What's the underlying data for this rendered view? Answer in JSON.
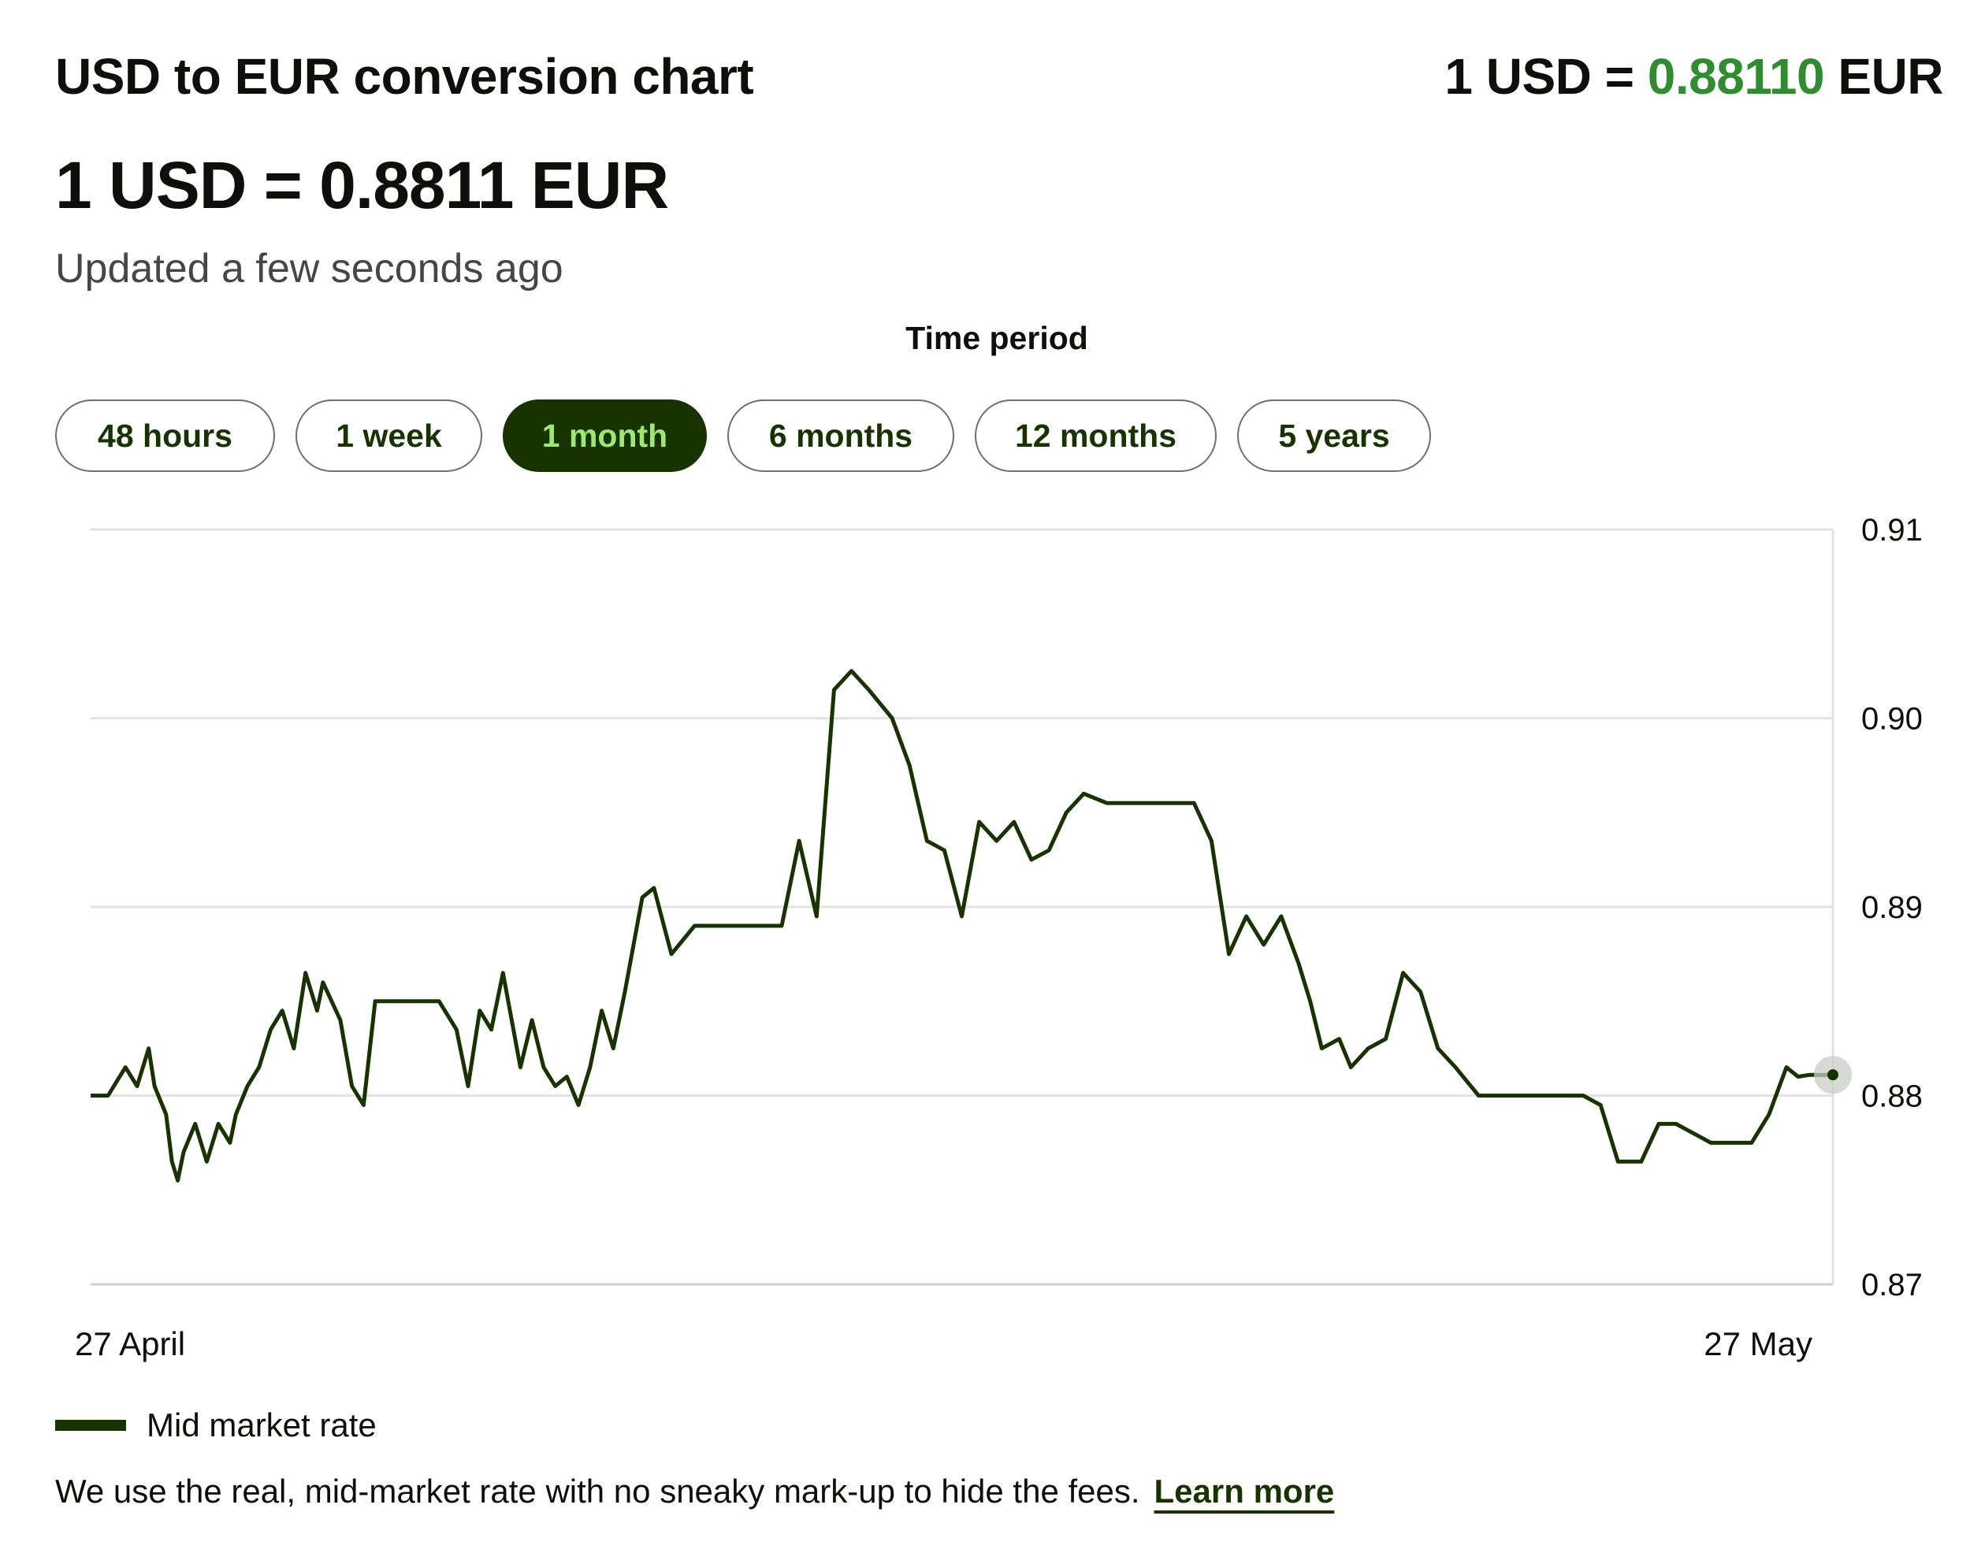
{
  "header": {
    "title": "USD to EUR conversion chart",
    "rate_prefix": "1 USD = ",
    "rate_value": "0.88110",
    "rate_suffix": " EUR",
    "rate_headline": "1 USD = 0.8811 EUR",
    "updated": "Updated a few seconds ago"
  },
  "period": {
    "label": "Time period",
    "options": [
      "48 hours",
      "1 week",
      "1 month",
      "6 months",
      "12 months",
      "5 years"
    ],
    "selected": "1 month"
  },
  "legend": {
    "label": "Mid market rate"
  },
  "footer": {
    "note": "We use the real, mid-market rate with no sneaky mark-up to hide the fees.",
    "link": "Learn more"
  },
  "colors": {
    "line": "#163300",
    "accent_green": "#2f8d2f",
    "active_pill_bg": "#163300",
    "active_pill_text": "#9fe870"
  },
  "chart_data": {
    "type": "line",
    "ylim": [
      0.87,
      0.91
    ],
    "yticks": [
      "0.87",
      "0.88",
      "0.89",
      "0.90",
      "0.91"
    ],
    "x_range": [
      "27 April",
      "27 May"
    ],
    "x_labels": [
      "27 April",
      "27 May"
    ],
    "grid": true,
    "legend_position": "bottom-left",
    "series": [
      {
        "name": "Mid market rate",
        "x": [
          0.0,
          0.3,
          0.6,
          0.8,
          1.0,
          1.1,
          1.3,
          1.4,
          1.5,
          1.6,
          1.8,
          2.0,
          2.2,
          2.4,
          2.5,
          2.7,
          2.9,
          3.1,
          3.3,
          3.5,
          3.7,
          3.9,
          4.0,
          4.3,
          4.5,
          4.7,
          4.9,
          5.1,
          5.3,
          5.6,
          5.8,
          6.0,
          6.3,
          6.5,
          6.7,
          6.9,
          7.1,
          7.4,
          7.6,
          7.8,
          8.0,
          8.2,
          8.4,
          8.6,
          8.8,
          9.0,
          9.2,
          9.5,
          9.7,
          10.0,
          10.4,
          10.8,
          11.2,
          11.5,
          11.9,
          12.2,
          12.5,
          12.8,
          13.1,
          13.4,
          13.8,
          14.1,
          14.4,
          14.7,
          15.0,
          15.3,
          15.6,
          15.9,
          16.2,
          16.5,
          16.8,
          17.1,
          17.5,
          17.8,
          18.1,
          18.4,
          18.7,
          19.0,
          19.3,
          19.6,
          19.9,
          20.2,
          20.5,
          20.8,
          21.0,
          21.2,
          21.5,
          21.7,
          22.0,
          22.3,
          22.6,
          22.9,
          23.2,
          23.5,
          23.9,
          24.2,
          24.5,
          24.8,
          25.1,
          25.4,
          25.7,
          26.0,
          26.3,
          26.7,
          27.0,
          27.3,
          27.6,
          27.9,
          28.3,
          28.6,
          28.9,
          29.2,
          29.4,
          29.6,
          30.0
        ],
        "values": [
          0.88,
          0.88,
          0.8815,
          0.8805,
          0.8825,
          0.8805,
          0.879,
          0.8765,
          0.8755,
          0.877,
          0.8785,
          0.8765,
          0.8785,
          0.8775,
          0.879,
          0.8805,
          0.8815,
          0.8835,
          0.8845,
          0.8825,
          0.8865,
          0.8845,
          0.886,
          0.884,
          0.8805,
          0.8795,
          0.885,
          0.885,
          0.885,
          0.885,
          0.885,
          0.885,
          0.8835,
          0.8805,
          0.8845,
          0.8835,
          0.8865,
          0.8815,
          0.884,
          0.8815,
          0.8805,
          0.881,
          0.8795,
          0.8815,
          0.8845,
          0.8825,
          0.8855,
          0.8905,
          0.891,
          0.8875,
          0.889,
          0.889,
          0.889,
          0.889,
          0.889,
          0.8935,
          0.8895,
          0.9015,
          0.9025,
          0.9015,
          0.9,
          0.8975,
          0.8935,
          0.893,
          0.8895,
          0.8945,
          0.8935,
          0.8945,
          0.8925,
          0.893,
          0.895,
          0.896,
          0.8955,
          0.8955,
          0.8955,
          0.8955,
          0.8955,
          0.8955,
          0.8935,
          0.8875,
          0.8895,
          0.888,
          0.8895,
          0.887,
          0.885,
          0.8825,
          0.883,
          0.8815,
          0.8825,
          0.883,
          0.8865,
          0.8855,
          0.8825,
          0.8815,
          0.88,
          0.88,
          0.88,
          0.88,
          0.88,
          0.88,
          0.88,
          0.8795,
          0.8765,
          0.8765,
          0.8785,
          0.8785,
          0.878,
          0.8775,
          0.8775,
          0.8775,
          0.879,
          0.8815,
          0.881,
          0.8811,
          0.8811
        ]
      }
    ]
  }
}
